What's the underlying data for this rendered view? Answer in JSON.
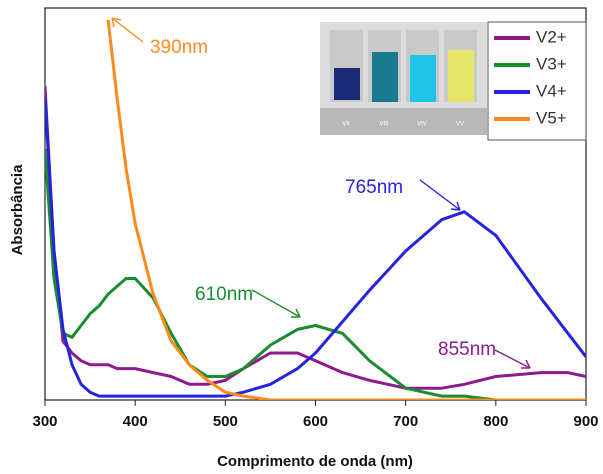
{
  "chart_data": {
    "type": "line",
    "x_label": "Comprimento de onda (nm)",
    "y_label": "Absorbância",
    "x": [
      300,
      310,
      320,
      330,
      340,
      350,
      360,
      370,
      380,
      390,
      400,
      420,
      440,
      460,
      480,
      500,
      520,
      550,
      580,
      600,
      630,
      660,
      700,
      740,
      765,
      800,
      850,
      880,
      900
    ],
    "xlim": [
      300,
      900
    ],
    "xticks": [
      300,
      400,
      500,
      600,
      700,
      800,
      900
    ],
    "ylim": [
      0,
      1
    ],
    "series": [
      {
        "name": "V2+",
        "color": "#8e1b8e",
        "values": [
          0.8,
          0.38,
          0.15,
          0.12,
          0.1,
          0.09,
          0.09,
          0.09,
          0.08,
          0.08,
          0.08,
          0.07,
          0.06,
          0.04,
          0.04,
          0.05,
          0.08,
          0.12,
          0.12,
          0.1,
          0.07,
          0.05,
          0.03,
          0.03,
          0.04,
          0.06,
          0.07,
          0.07,
          0.06
        ]
      },
      {
        "name": "V3+",
        "color": "#1a8c2e",
        "values": [
          0.64,
          0.31,
          0.17,
          0.16,
          0.19,
          0.22,
          0.24,
          0.27,
          0.29,
          0.31,
          0.31,
          0.26,
          0.17,
          0.09,
          0.06,
          0.06,
          0.08,
          0.14,
          0.18,
          0.19,
          0.17,
          0.1,
          0.03,
          0.01,
          0.01,
          0,
          0,
          0,
          0
        ]
      },
      {
        "name": "V4+",
        "color": "#2424e0",
        "values": [
          0.77,
          0.38,
          0.18,
          0.09,
          0.04,
          0.02,
          0.01,
          0.01,
          0.01,
          0.01,
          0.01,
          0.01,
          0.01,
          0.01,
          0.01,
          0.01,
          0.02,
          0.04,
          0.08,
          0.12,
          0.2,
          0.28,
          0.38,
          0.46,
          0.48,
          0.42,
          0.26,
          0.17,
          0.11
        ]
      },
      {
        "name": "V5+",
        "color": "#ff8a1c",
        "values": [
          null,
          null,
          null,
          null,
          null,
          null,
          null,
          0.97,
          0.77,
          0.59,
          0.45,
          0.27,
          0.15,
          0.09,
          0.05,
          0.02,
          0.01,
          0,
          0,
          0,
          0,
          0,
          0,
          0,
          0,
          0,
          0,
          0,
          0
        ]
      }
    ],
    "annotations": [
      {
        "text": "390nm",
        "color": "#ff8a1c"
      },
      {
        "text": "610nm",
        "color": "#1a8c2e"
      },
      {
        "text": "765nm",
        "color": "#2424e0"
      },
      {
        "text": "855nm",
        "color": "#8e1b8e"
      }
    ],
    "inset_labels": [
      "VII",
      "VIII",
      "VIV",
      "VV"
    ]
  }
}
